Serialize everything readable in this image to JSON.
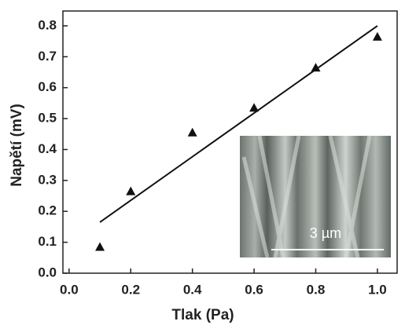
{
  "chart_data": {
    "type": "scatter",
    "x_label": "Tlak (Pa)",
    "y_label": "Napětí (mV)",
    "inset_label": "3 µm",
    "series": [
      {
        "x": [
          0.1,
          0.2,
          0.4,
          0.6,
          0.8,
          1.0
        ],
        "values": [
          0.085,
          0.265,
          0.455,
          0.535,
          0.665,
          0.765
        ],
        "color": "#111111",
        "marker": "triangle"
      },
      {
        "x": [
          0.1,
          1.0
        ],
        "values": [
          0.165,
          0.8
        ],
        "color": "#111111",
        "marker": "line"
      }
    ],
    "xlim": [
      -0.02,
      1.064
    ],
    "ylim": [
      0,
      0.848
    ],
    "xticks": [
      {
        "value": 0,
        "label": "0.0"
      },
      0.2,
      0.4,
      0.6,
      0.8,
      {
        "value": 1,
        "label": "1.0"
      }
    ],
    "yticks": [
      {
        "value": 0,
        "label": "0.0"
      },
      0.1,
      0.2,
      0.3,
      0.4,
      0.5,
      0.6,
      0.7,
      0.8
    ]
  }
}
